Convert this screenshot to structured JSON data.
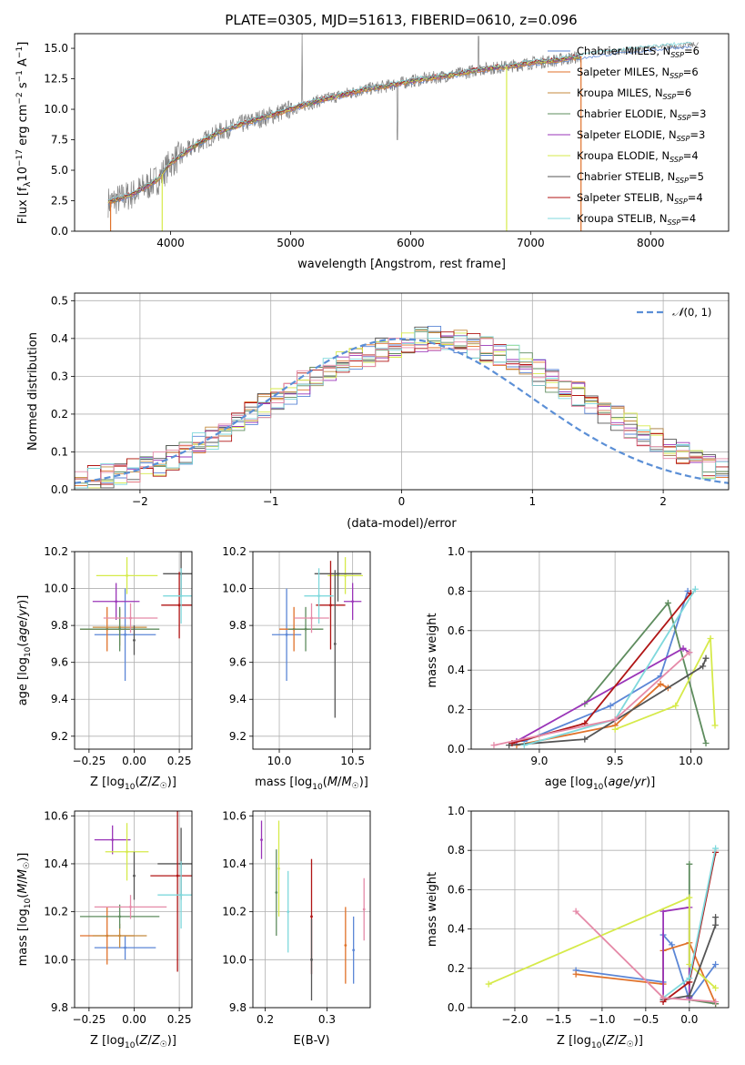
{
  "figure_title": "PLATE=0305, MJD=51613, FIBERID=0610, z=0.096",
  "colors": {
    "chab_miles": "#5b86d6",
    "salp_miles": "#e0722a",
    "krou_miles": "#c48a3d",
    "chab_elodie": "#5e8c5e",
    "salp_elodie": "#9a35b8",
    "krou_elodie": "#d6ea4a",
    "chab_stelib": "#555555",
    "salp_stelib": "#b01515",
    "krou_stelib": "#7fd8dc",
    "pink": "#e58aa8",
    "gauss": "#5b8fd6",
    "obs": "#808080"
  },
  "chart_data": [
    {
      "id": "spectrum",
      "type": "line",
      "xlabel": "wavelength [Angstrom, rest frame]",
      "ylabel": "Flux [f_λ10^-17 erg cm^-2 s^-1 A^-1]",
      "xlim": [
        3200,
        8650
      ],
      "ylim": [
        0,
        16.2
      ],
      "xticks": [
        4000,
        5000,
        6000,
        7000,
        8000
      ],
      "yticks": [
        0.0,
        2.5,
        5.0,
        7.5,
        10.0,
        12.5,
        15.0
      ],
      "grid": false,
      "legend_position": "top-right",
      "legend": [
        {
          "label": "Chabrier MILES, N_SSP=6",
          "color": "#5b86d6"
        },
        {
          "label": "Salpeter MILES, N_SSP=6",
          "color": "#e0722a"
        },
        {
          "label": "Kroupa MILES, N_SSP=6",
          "color": "#c48a3d"
        },
        {
          "label": "Chabrier ELODIE, N_SSP=3",
          "color": "#5e8c5e"
        },
        {
          "label": "Salpeter ELODIE, N_SSP=3",
          "color": "#9a35b8"
        },
        {
          "label": "Kroupa ELODIE, N_SSP=4",
          "color": "#d6ea4a"
        },
        {
          "label": "Chabrier STELIB, N_SSP=5",
          "color": "#555555"
        },
        {
          "label": "Salpeter STELIB, N_SSP=4",
          "color": "#b01515"
        },
        {
          "label": "Kroupa STELIB, N_SSP=4",
          "color": "#7fd8dc"
        }
      ],
      "continuum_x": [
        3500,
        3700,
        3900,
        4000,
        4200,
        4400,
        4600,
        4800,
        5000,
        5200,
        5400,
        5600,
        5800,
        6000,
        6200,
        6400,
        6600,
        6800,
        7000,
        7200,
        7400,
        7600,
        7800,
        8000,
        8200,
        8400
      ],
      "continuum_y": [
        2.4,
        3.1,
        4.3,
        5.6,
        7.0,
        8.1,
        8.8,
        9.4,
        10.0,
        10.6,
        11.1,
        11.6,
        11.9,
        12.3,
        12.6,
        12.9,
        13.3,
        13.5,
        13.8,
        14.0,
        14.3,
        14.6,
        14.8,
        15.0,
        15.2,
        15.3
      ]
    },
    {
      "id": "residuals",
      "type": "bar",
      "xlabel": "(data-model)/error",
      "ylabel": "Normed distribution",
      "xlim": [
        -2.5,
        2.5
      ],
      "ylim": [
        0,
        0.52
      ],
      "xticks": [
        -2,
        -1,
        0,
        1,
        2
      ],
      "yticks": [
        0.0,
        0.1,
        0.2,
        0.3,
        0.4,
        0.5
      ],
      "grid": true,
      "legend_position": "top-right",
      "legend": [
        {
          "label": "N(0,1)",
          "style": "dashed"
        }
      ],
      "bin_width": 0.1,
      "values_reference": [
        0.025,
        0.03,
        0.035,
        0.04,
        0.05,
        0.06,
        0.07,
        0.085,
        0.1,
        0.12,
        0.14,
        0.16,
        0.18,
        0.2,
        0.22,
        0.24,
        0.26,
        0.28,
        0.3,
        0.32,
        0.34,
        0.35,
        0.36,
        0.37,
        0.38,
        0.39,
        0.4,
        0.4,
        0.4,
        0.39,
        0.38,
        0.37,
        0.36,
        0.35,
        0.33,
        0.31,
        0.29,
        0.27,
        0.25,
        0.23,
        0.21,
        0.19,
        0.17,
        0.15,
        0.13,
        0.11,
        0.09,
        0.075,
        0.06,
        0.05
      ]
    },
    {
      "id": "age_vs_Z",
      "type": "scatter",
      "xlabel": "Z [log10(Z/Z☉)]",
      "ylabel": "age  [log10(age/yr)]",
      "xlim": [
        -0.33,
        0.32
      ],
      "ylim": [
        9.13,
        10.2
      ],
      "xticks": [
        -0.25,
        0.0,
        0.25
      ],
      "yticks": [
        9.2,
        9.4,
        9.6,
        9.8,
        10.0,
        10.2
      ],
      "grid": true,
      "points": [
        {
          "c": "chab_miles",
          "x": -0.05,
          "xerr": 0.17,
          "y": 9.75,
          "yerr": 0.25
        },
        {
          "c": "salp_miles",
          "x": -0.15,
          "xerr": 0.15,
          "y": 9.78,
          "yerr": 0.12
        },
        {
          "c": "krou_miles",
          "x": -0.08,
          "xerr": 0.15,
          "y": 9.79,
          "yerr": 0.1
        },
        {
          "c": "chab_elodie",
          "x": -0.08,
          "xerr": 0.22,
          "y": 9.78,
          "yerr": 0.12
        },
        {
          "c": "salp_elodie",
          "x": -0.1,
          "xerr": 0.13,
          "y": 9.93,
          "yerr": 0.1
        },
        {
          "c": "krou_elodie",
          "x": -0.04,
          "xerr": 0.17,
          "y": 10.07,
          "yerr": 0.1
        },
        {
          "c": "chab_stelib",
          "x": 0.26,
          "xerr": 0.1,
          "y": 10.08,
          "yerr": 0.12
        },
        {
          "c": "salp_stelib",
          "x": 0.25,
          "xerr": 0.1,
          "y": 9.91,
          "yerr": 0.18
        },
        {
          "c": "krou_stelib",
          "x": 0.26,
          "xerr": 0.1,
          "y": 9.96,
          "yerr": 0.15
        },
        {
          "c": "pink",
          "x": -0.02,
          "xerr": 0.15,
          "y": 9.84,
          "yerr": 0.08
        },
        {
          "c": "chab_stelib",
          "x": 0.0,
          "xerr": 0.0,
          "y": 9.72,
          "yerr": 0.08
        }
      ]
    },
    {
      "id": "age_vs_mass",
      "type": "scatter",
      "xlabel": "mass [log10(M/M☉)]",
      "ylabel": "",
      "xlim": [
        9.82,
        10.62
      ],
      "ylim": [
        9.13,
        10.2
      ],
      "xticks": [
        10.0,
        10.5
      ],
      "yticks": [
        9.2,
        9.4,
        9.6,
        9.8,
        10.0,
        10.2
      ],
      "grid": true,
      "points": [
        {
          "c": "chab_miles",
          "x": 10.05,
          "xerr": 0.1,
          "y": 9.75,
          "yerr": 0.25
        },
        {
          "c": "salp_miles",
          "x": 10.1,
          "xerr": 0.1,
          "y": 9.78,
          "yerr": 0.12
        },
        {
          "c": "chab_elodie",
          "x": 10.18,
          "xerr": 0.12,
          "y": 9.78,
          "yerr": 0.12
        },
        {
          "c": "salp_elodie",
          "x": 10.5,
          "xerr": 0.06,
          "y": 9.93,
          "yerr": 0.1
        },
        {
          "c": "krou_elodie",
          "x": 10.45,
          "xerr": 0.12,
          "y": 10.07,
          "yerr": 0.1
        },
        {
          "c": "chab_stelib",
          "x": 10.4,
          "xerr": 0.16,
          "y": 10.08,
          "yerr": 0.15
        },
        {
          "c": "salp_stelib",
          "x": 10.35,
          "xerr": 0.1,
          "y": 9.91,
          "yerr": 0.24
        },
        {
          "c": "krou_stelib",
          "x": 10.27,
          "xerr": 0.1,
          "y": 9.96,
          "yerr": 0.15
        },
        {
          "c": "pink",
          "x": 10.22,
          "xerr": 0.12,
          "y": 9.84,
          "yerr": 0.08
        },
        {
          "c": "chab_stelib",
          "x": 10.38,
          "xerr": 0.0,
          "y": 9.7,
          "yerr": 0.4
        }
      ]
    },
    {
      "id": "weight_vs_age",
      "type": "line",
      "xlabel": "age  [log10(age/yr)]",
      "ylabel": "mass weight",
      "xlim": [
        8.55,
        10.25
      ],
      "ylim": [
        0,
        1.0
      ],
      "xticks": [
        9.0,
        9.5,
        10.0
      ],
      "yticks": [
        0.0,
        0.2,
        0.4,
        0.6,
        0.8,
        1.0
      ],
      "grid": true,
      "series": [
        {
          "c": "chab_miles",
          "x": [
            8.9,
            9.47,
            9.8,
            9.98
          ],
          "y": [
            0.04,
            0.22,
            0.37,
            0.8
          ]
        },
        {
          "c": "salp_miles",
          "x": [
            8.85,
            9.5,
            9.8,
            9.85
          ],
          "y": [
            0.02,
            0.12,
            0.33,
            0.31
          ]
        },
        {
          "c": "chab_elodie",
          "x": [
            9.3,
            9.85,
            10.1
          ],
          "y": [
            0.23,
            0.74,
            0.03
          ]
        },
        {
          "c": "salp_elodie",
          "x": [
            8.85,
            9.95,
            9.99
          ],
          "y": [
            0.04,
            0.51,
            0.49
          ]
        },
        {
          "c": "krou_elodie",
          "x": [
            9.5,
            9.9,
            10.13,
            10.16
          ],
          "y": [
            0.1,
            0.22,
            0.56,
            0.12
          ]
        },
        {
          "c": "chab_stelib",
          "x": [
            8.8,
            9.3,
            10.08,
            10.1
          ],
          "y": [
            0.02,
            0.05,
            0.42,
            0.46
          ]
        },
        {
          "c": "salp_stelib",
          "x": [
            8.82,
            9.3,
            10.0
          ],
          "y": [
            0.03,
            0.13,
            0.79
          ]
        },
        {
          "c": "krou_stelib",
          "x": [
            8.9,
            9.5,
            10.03
          ],
          "y": [
            0.02,
            0.15,
            0.81
          ]
        },
        {
          "c": "pink",
          "x": [
            8.7,
            9.5,
            9.99
          ],
          "y": [
            0.02,
            0.15,
            0.49
          ]
        }
      ]
    },
    {
      "id": "mass_vs_Z",
      "type": "scatter",
      "xlabel": "Z [log10(Z/Z☉)]",
      "ylabel": "mass [log10(M/M☉)]",
      "xlim": [
        -0.33,
        0.32
      ],
      "ylim": [
        9.8,
        10.62
      ],
      "xticks": [
        -0.25,
        0.0,
        0.25
      ],
      "yticks": [
        9.8,
        10.0,
        10.2,
        10.4,
        10.6
      ],
      "grid": true,
      "points": [
        {
          "c": "chab_miles",
          "x": -0.05,
          "xerr": 0.17,
          "y": 10.05,
          "yerr": 0.05
        },
        {
          "c": "salp_miles",
          "x": -0.15,
          "xerr": 0.15,
          "y": 10.1,
          "yerr": 0.12
        },
        {
          "c": "krou_miles",
          "x": -0.08,
          "xerr": 0.15,
          "y": 10.1,
          "yerr": 0.05
        },
        {
          "c": "chab_elodie",
          "x": -0.08,
          "xerr": 0.22,
          "y": 10.18,
          "yerr": 0.05
        },
        {
          "c": "salp_elodie",
          "x": -0.12,
          "xerr": 0.1,
          "y": 10.5,
          "yerr": 0.06
        },
        {
          "c": "krou_elodie",
          "x": -0.04,
          "xerr": 0.12,
          "y": 10.45,
          "yerr": 0.12
        },
        {
          "c": "chab_stelib",
          "x": 0.26,
          "xerr": 0.13,
          "y": 10.4,
          "yerr": 0.15
        },
        {
          "c": "salp_stelib",
          "x": 0.24,
          "xerr": 0.15,
          "y": 10.35,
          "yerr": 0.4
        },
        {
          "c": "krou_stelib",
          "x": 0.26,
          "xerr": 0.13,
          "y": 10.27,
          "yerr": 0.14
        },
        {
          "c": "pink",
          "x": -0.02,
          "xerr": 0.2,
          "y": 10.22,
          "yerr": 0.05
        },
        {
          "c": "chab_stelib",
          "x": 0.0,
          "xerr": 0.0,
          "y": 10.35,
          "yerr": 0.1
        }
      ]
    },
    {
      "id": "mass_vs_EBV",
      "type": "scatter",
      "xlabel": "E(B-V)",
      "ylabel": "",
      "xlim": [
        0.18,
        0.37
      ],
      "ylim": [
        9.8,
        10.62
      ],
      "xticks": [
        0.2,
        0.3
      ],
      "yticks": [
        9.8,
        10.0,
        10.2,
        10.4,
        10.6
      ],
      "grid": true,
      "points": [
        {
          "c": "salp_elodie",
          "x": 0.194,
          "y": 10.5,
          "yerr": 0.08
        },
        {
          "c": "krou_elodie",
          "x": 0.222,
          "y": 10.38,
          "yerr": 0.2
        },
        {
          "c": "chab_elodie",
          "x": 0.218,
          "y": 10.28,
          "yerr": 0.18
        },
        {
          "c": "krou_stelib",
          "x": 0.237,
          "y": 10.2,
          "yerr": 0.17
        },
        {
          "c": "salp_stelib",
          "x": 0.275,
          "y": 10.18,
          "yerr": 0.24
        },
        {
          "c": "chab_stelib",
          "x": 0.275,
          "y": 10.0,
          "yerr": 0.17
        },
        {
          "c": "salp_miles",
          "x": 0.33,
          "y": 10.06,
          "yerr": 0.16
        },
        {
          "c": "chab_miles",
          "x": 0.343,
          "y": 10.04,
          "yerr": 0.14
        },
        {
          "c": "pink",
          "x": 0.36,
          "y": 10.21,
          "yerr": 0.13
        }
      ]
    },
    {
      "id": "weight_vs_Z",
      "type": "line",
      "xlabel": "Z [log10(Z/Z☉)]",
      "ylabel": "mass weight",
      "xlim": [
        -2.5,
        0.45
      ],
      "ylim": [
        0,
        1.0
      ],
      "xticks": [
        -2.0,
        -1.5,
        -1.0,
        -0.5,
        0.0
      ],
      "yticks": [
        0.0,
        0.2,
        0.4,
        0.6,
        0.8,
        1.0
      ],
      "grid": true,
      "series": [
        {
          "c": "chab_miles",
          "x": [
            -1.3,
            -0.3,
            -0.3,
            -0.2,
            0.0,
            0.3
          ],
          "y": [
            0.19,
            0.13,
            0.37,
            0.32,
            0.04,
            0.22
          ]
        },
        {
          "c": "salp_miles",
          "x": [
            -1.3,
            -0.3,
            -0.3,
            0.0,
            0.3
          ],
          "y": [
            0.17,
            0.12,
            0.29,
            0.33,
            0.02
          ]
        },
        {
          "c": "chab_elodie",
          "x": [
            0.0,
            0.0,
            0.3
          ],
          "y": [
            0.73,
            0.04,
            0.02
          ]
        },
        {
          "c": "salp_elodie",
          "x": [
            -0.3,
            -0.3,
            0.0,
            0.0
          ],
          "y": [
            0.04,
            0.49,
            0.51,
            0.05
          ]
        },
        {
          "c": "krou_elodie",
          "x": [
            -2.3,
            0.0,
            0.0,
            0.3
          ],
          "y": [
            0.12,
            0.56,
            0.22,
            0.1
          ]
        },
        {
          "c": "chab_stelib",
          "x": [
            -0.3,
            0.0,
            0.3,
            0.3
          ],
          "y": [
            0.04,
            0.06,
            0.42,
            0.46
          ]
        },
        {
          "c": "salp_stelib",
          "x": [
            -0.3,
            0.0,
            0.3
          ],
          "y": [
            0.03,
            0.13,
            0.79
          ]
        },
        {
          "c": "krou_stelib",
          "x": [
            -0.3,
            0.0,
            0.3
          ],
          "y": [
            0.05,
            0.15,
            0.81
          ]
        },
        {
          "c": "pink",
          "x": [
            -1.3,
            -0.3,
            0.3
          ],
          "y": [
            0.49,
            0.05,
            0.03
          ]
        }
      ]
    }
  ]
}
